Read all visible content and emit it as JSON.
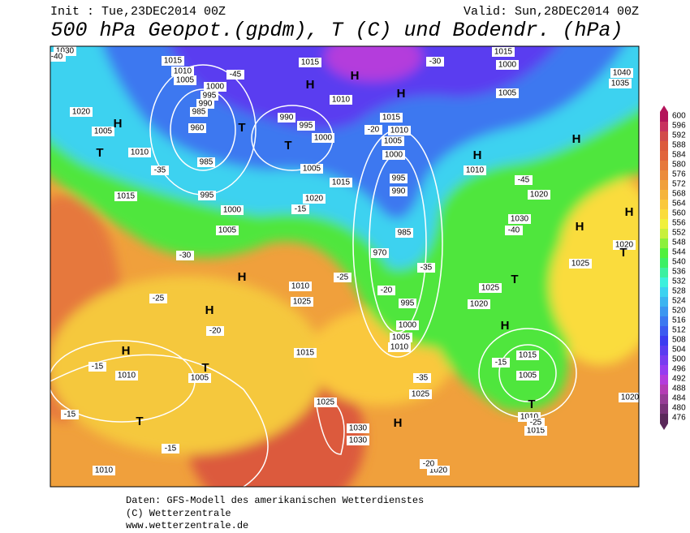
{
  "header": {
    "init": "Init : Tue,23DEC2014 00Z",
    "valid": "Valid: Sun,28DEC2014 00Z",
    "title": "500 hPa Geopot.(gpdm), T (C) und Bodendr. (hPa)"
  },
  "legend": {
    "ticks": [
      600,
      596,
      592,
      588,
      584,
      580,
      576,
      572,
      568,
      564,
      560,
      556,
      552,
      548,
      544,
      540,
      536,
      532,
      528,
      524,
      520,
      516,
      512,
      508,
      504,
      500,
      496,
      492,
      488,
      484,
      480,
      476
    ],
    "colors": [
      "#b4145a",
      "#c8325f",
      "#d24b4b",
      "#dc5a3c",
      "#e1643c",
      "#e6783c",
      "#eb8c3c",
      "#f0a03c",
      "#f5b43c",
      "#fac83c",
      "#fadc3c",
      "#f0f03c",
      "#c8f03c",
      "#8cf03c",
      "#50f03c",
      "#3cf064",
      "#3cf0a0",
      "#3cf0dc",
      "#3cd2f0",
      "#3cb4f0",
      "#3c96f0",
      "#3c78f0",
      "#3c5af0",
      "#3c3cf0",
      "#5a3cf0",
      "#783cf0",
      "#963cf0",
      "#b43cdc",
      "#b43cb4",
      "#963c96",
      "#783278",
      "#5a285a"
    ]
  },
  "map": {
    "labels": [
      "1030",
      "1015",
      "1010",
      "1005",
      "1000",
      "995",
      "990",
      "985",
      "960",
      "1020",
      "1005",
      "T",
      "1010",
      "1015",
      "985",
      "995",
      "1000",
      "1005",
      "990",
      "995",
      "1000",
      "1005",
      "1015",
      "H",
      "H",
      "H",
      "1010",
      "T",
      "T",
      "1015",
      "1020",
      "1015",
      "1010",
      "1005",
      "1000",
      "995",
      "990",
      "985",
      "970",
      "995",
      "1000",
      "1005",
      "1010",
      "1015",
      "1000",
      "1005",
      "1010",
      "H",
      "1020",
      "1030",
      "H",
      "1035",
      "1040",
      "H",
      "1020",
      "1025",
      "T",
      "H",
      "T",
      "1025",
      "1020",
      "H",
      "1015",
      "1005",
      "T",
      "1010",
      "1015",
      "1020",
      "H",
      "1010",
      "1025",
      "H",
      "H",
      "1010",
      "T",
      "1005",
      "T",
      "1010",
      "1015",
      "1025",
      "1030",
      "1030",
      "H",
      "1025",
      "1020",
      "H",
      "-35",
      "-30",
      "-25",
      "-20",
      "-15",
      "-15",
      "-15",
      "-15",
      "-25",
      "-20",
      "-35",
      "-30",
      "-45",
      "-40",
      "-35",
      "-20",
      "-15",
      "-25",
      "-20",
      "-45",
      "-40"
    ]
  },
  "footer": [
    "Daten: GFS-Modell des amerikanischen Wetterdienstes",
    "(C) Wetterzentrale",
    "www.wetterzentrale.de"
  ]
}
